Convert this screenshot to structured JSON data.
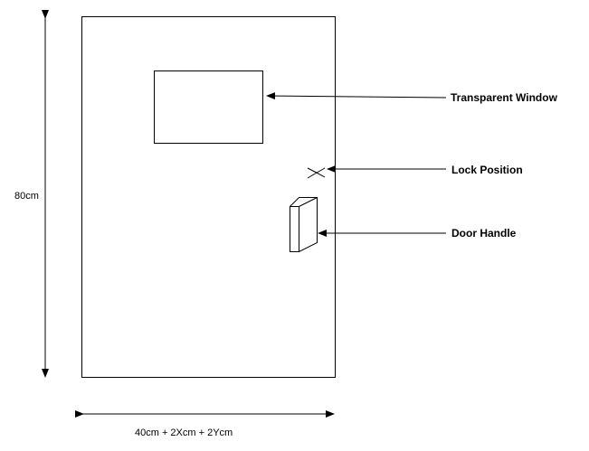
{
  "diagram": {
    "labels": {
      "window": "Transparent Window",
      "lock": "Lock Position",
      "handle": "Door Handle"
    },
    "dimensions": {
      "height": "80cm",
      "width": "40cm + 2Xcm + 2Ycm"
    }
  }
}
